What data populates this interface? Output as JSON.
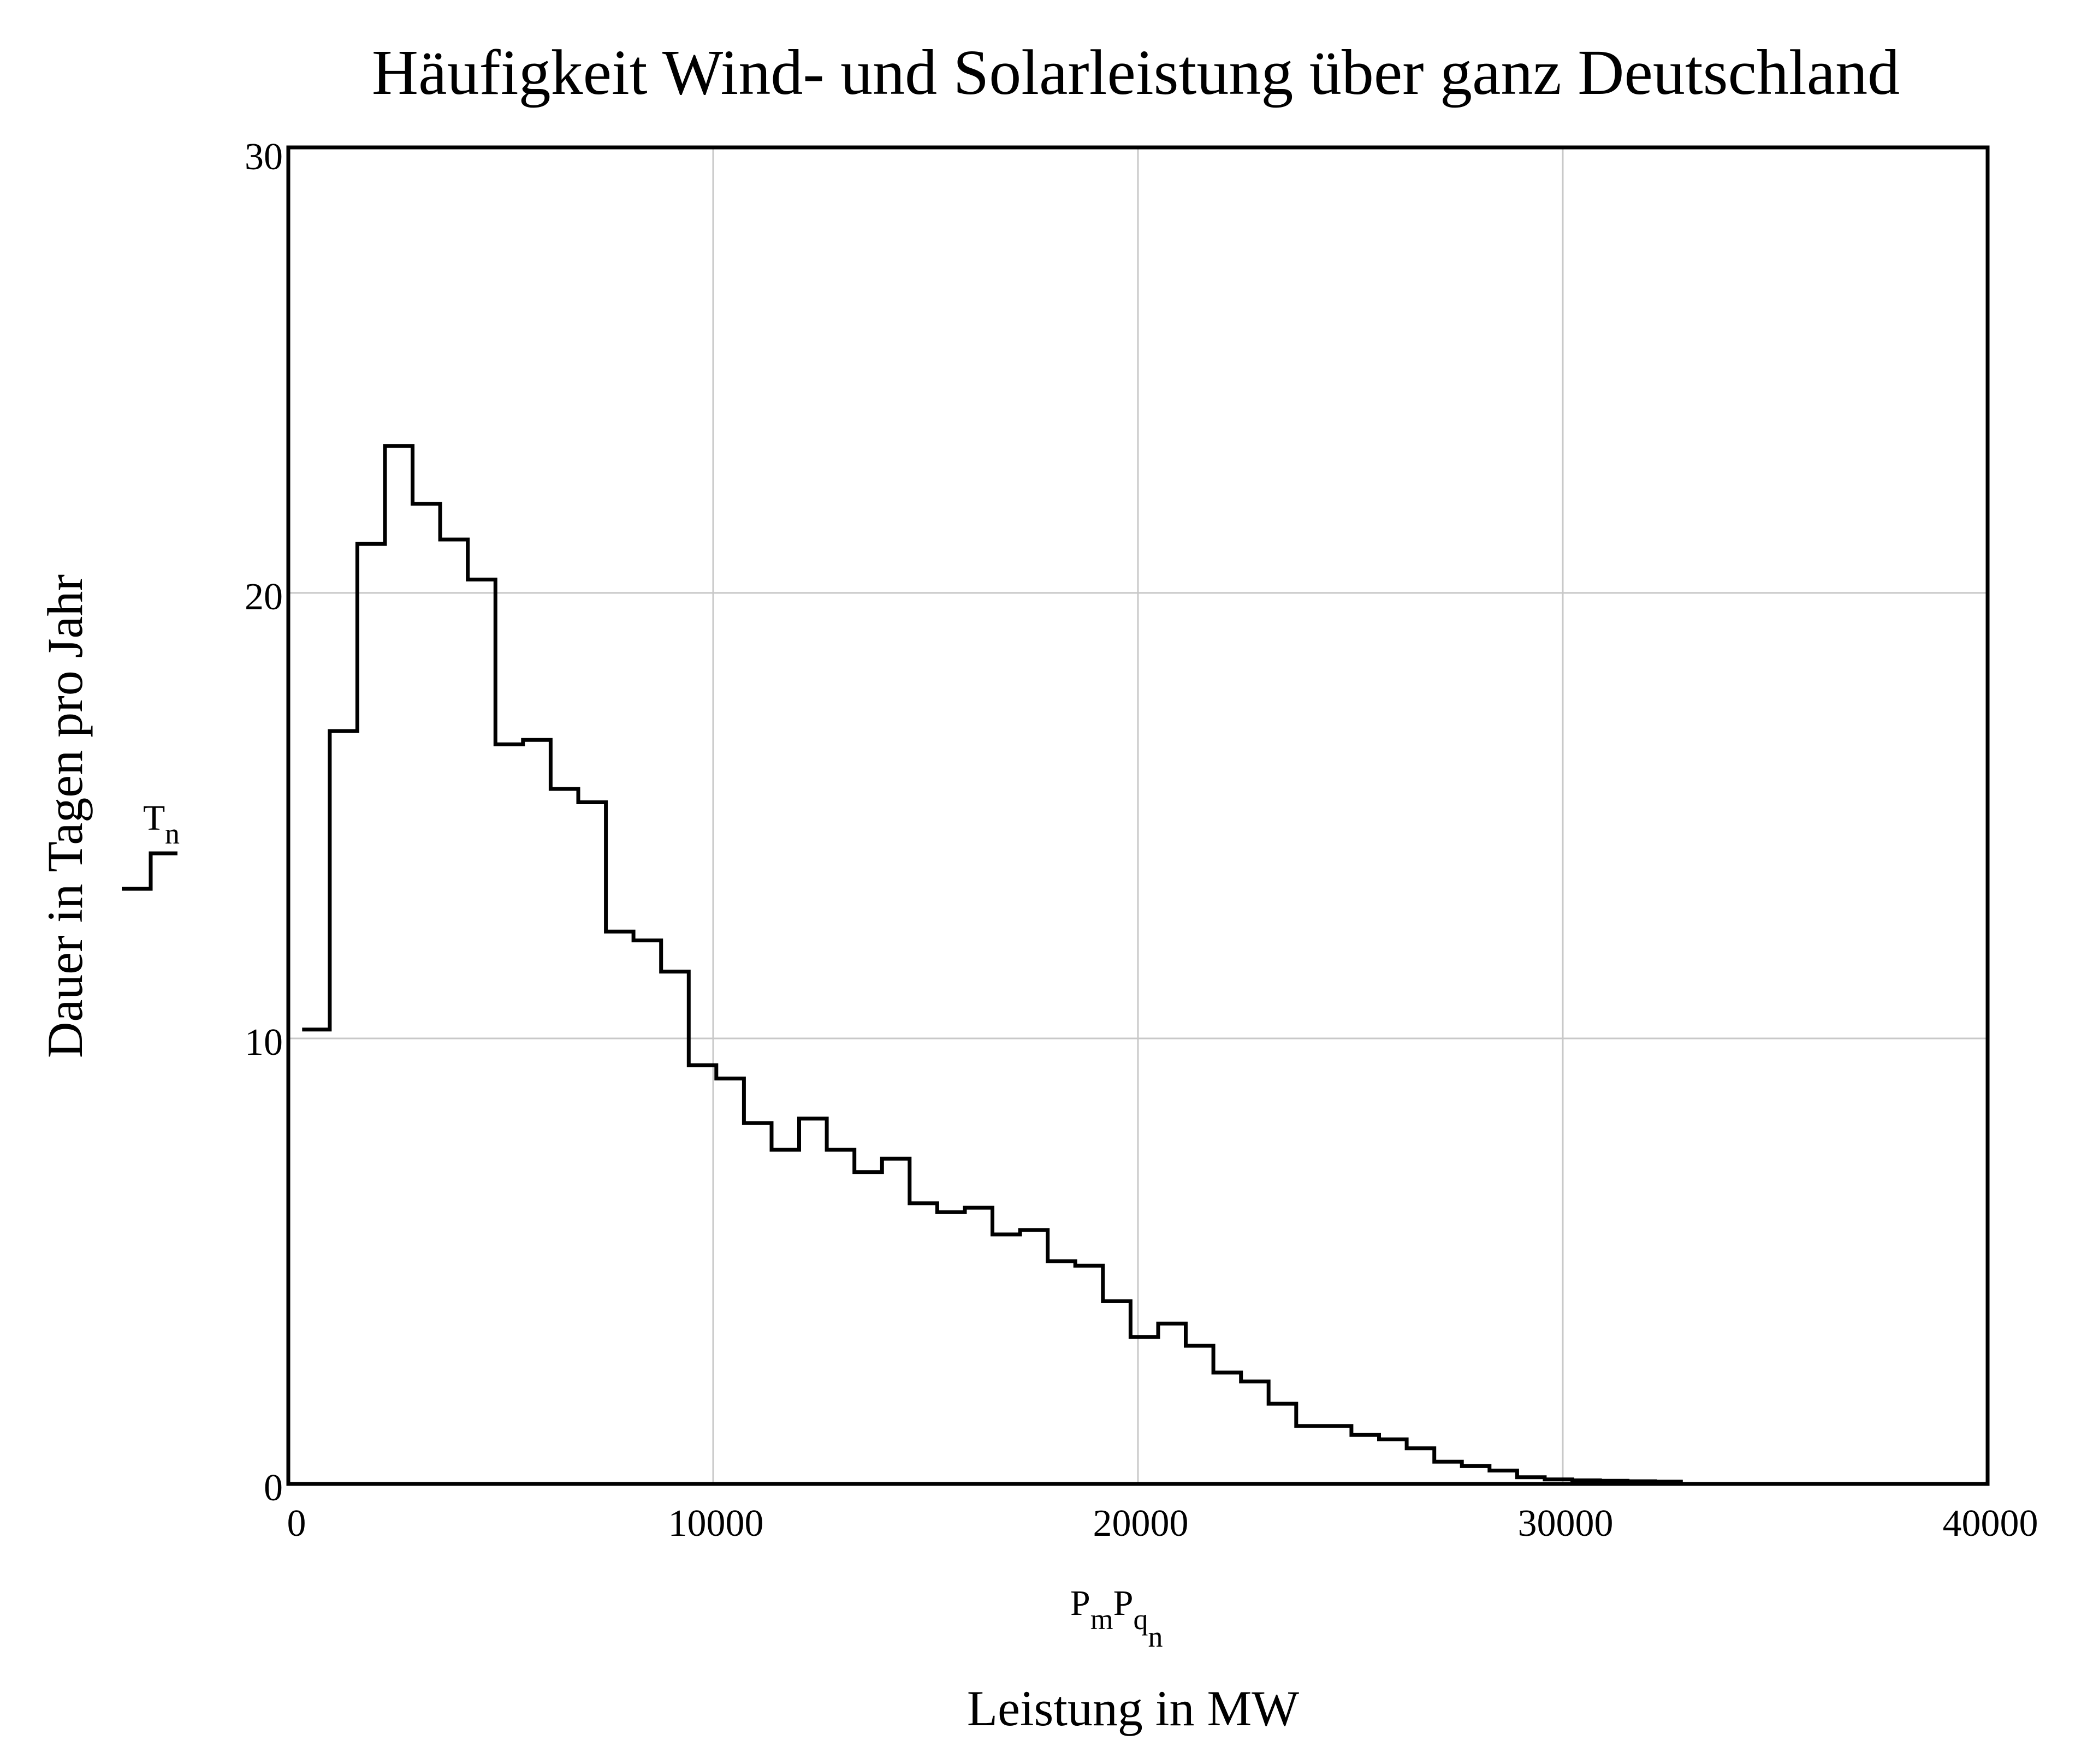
{
  "chart_data": {
    "type": "line",
    "step": true,
    "title": "Häufigkeit Wind- und Solarleistung über ganz Deutschland",
    "xlabel": "Leistung in MW",
    "ylabel": "Dauer in Tagen pro Jahr",
    "x_variable": {
      "base1": "P",
      "sub1": "m",
      "base2": "P",
      "sub2": "q",
      "sub3": "n"
    },
    "y_variable": {
      "base": "T",
      "sub": "n"
    },
    "xlim": [
      0,
      40000
    ],
    "ylim": [
      0,
      30
    ],
    "xticks": [
      0,
      10000,
      20000,
      30000,
      40000
    ],
    "yticks": [
      0,
      10,
      20,
      30
    ],
    "xtick_labels": [
      "0",
      "10000",
      "20000",
      "30000",
      "40000"
    ],
    "ytick_labels": [
      "0",
      "10",
      "20",
      "30"
    ],
    "grid": true,
    "line_color": "#000000",
    "grid_color": "#c8c8c8",
    "series": [
      {
        "x": [
          650,
          1300,
          1950,
          2600,
          3250,
          3900,
          4550,
          5200,
          5850,
          6500,
          7150,
          7800,
          8450,
          9100,
          9750,
          10400,
          11050,
          11700,
          12350,
          13000,
          13650,
          14300,
          14950,
          15600,
          16250,
          16900,
          17550,
          18200,
          18850,
          19500,
          20150,
          20800,
          21450,
          22100,
          22750,
          23400,
          24050,
          24700,
          25350,
          26000,
          26650,
          27300,
          27950,
          28600,
          29250,
          29900,
          30550,
          31200,
          31850,
          32500
        ],
        "y": [
          10.2,
          16.9,
          21.1,
          23.3,
          22.0,
          21.2,
          20.3,
          16.6,
          16.7,
          15.6,
          15.3,
          12.4,
          12.2,
          11.5,
          9.4,
          9.1,
          8.1,
          7.5,
          8.2,
          7.5,
          7.0,
          7.3,
          6.3,
          6.1,
          6.2,
          5.6,
          5.7,
          5.0,
          4.9,
          4.1,
          3.3,
          3.6,
          3.1,
          2.5,
          2.3,
          1.8,
          1.3,
          1.3,
          1.1,
          1.0,
          0.8,
          0.5,
          0.4,
          0.3,
          0.15,
          0.1,
          0.08,
          0.07,
          0.06,
          0.05
        ]
      }
    ]
  }
}
